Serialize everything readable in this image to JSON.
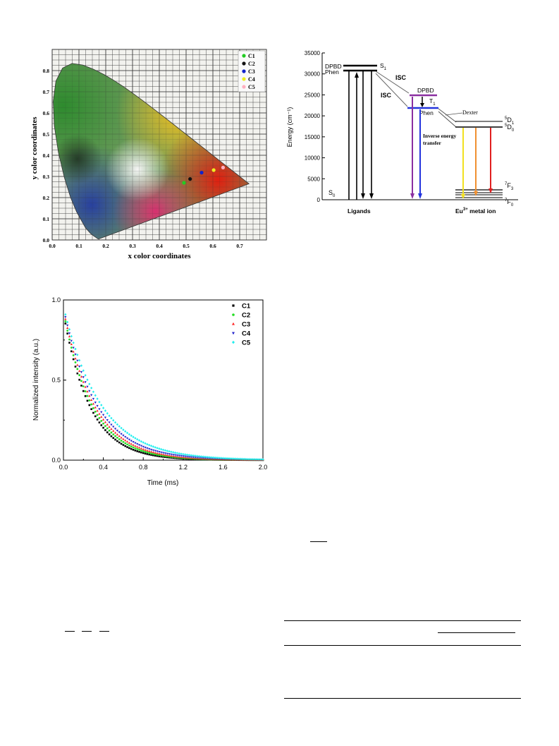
{
  "cie_chart": {
    "xlabel": "x color coordinates",
    "ylabel": "y color coordinates",
    "x_ticks": [
      "0.0",
      "0.1",
      "0.2",
      "0.3",
      "0.4",
      "0.5",
      "0.6",
      "0.7"
    ],
    "y_ticks": [
      "0.0",
      "0.1",
      "0.2",
      "0.3",
      "0.4",
      "0.5",
      "0.6",
      "0.7",
      "0.8"
    ],
    "points": [
      {
        "name": "C1",
        "color": "#22cc22",
        "x": 0.492,
        "y": 0.27
      },
      {
        "name": "C2",
        "color": "#111111",
        "x": 0.515,
        "y": 0.288
      },
      {
        "name": "C3",
        "color": "#1122cc",
        "x": 0.558,
        "y": 0.318
      },
      {
        "name": "C4",
        "color": "#eeee22",
        "x": 0.603,
        "y": 0.33
      },
      {
        "name": "C5",
        "color": "#ffb0c0",
        "x": 0.638,
        "y": 0.342
      }
    ]
  },
  "energy_diagram": {
    "ylabel": "Energy (cm⁻¹)",
    "y_ticks": [
      "0",
      "5000",
      "10000",
      "15000",
      "20000",
      "25000",
      "30000",
      "35000"
    ],
    "labels": {
      "dpbd_s": "DPBD",
      "phen_s": "Phen",
      "s1": "S",
      "s1_sub": "1",
      "isc1": "ISC",
      "isc2": "ISC",
      "dpbd_t": "DPBD",
      "t1": "T",
      "t1_sub": "1",
      "phen_t": "Phen",
      "dexter": "Dexter",
      "inverse1": "Inverse energy",
      "inverse2": "transfer",
      "s0": "S",
      "s0_sub": "0",
      "ligands": "Ligands",
      "eu_base": "Eu",
      "eu_sup": "3+",
      "eu_tail": " metal ion",
      "d1_sup": "5",
      "d1_main": "D",
      "d1_sub": "1",
      "d0_sup": "5",
      "d0_main": "D",
      "d0_sub": "0",
      "f3_sup": "7",
      "f3_main": "F",
      "f3_sub": "3",
      "f0_sup": "7",
      "f0_main": "F",
      "f0_sub": "0"
    }
  },
  "chart_data": [
    {
      "type": "scatter",
      "title": "",
      "xlabel": "x color coordinates",
      "ylabel": "y color coordinates",
      "xlim": [
        0,
        0.8
      ],
      "ylim": [
        0,
        0.9
      ],
      "series": [
        {
          "name": "C1",
          "x": [
            0.492
          ],
          "y": [
            0.27
          ]
        },
        {
          "name": "C2",
          "x": [
            0.515
          ],
          "y": [
            0.288
          ]
        },
        {
          "name": "C3",
          "x": [
            0.558
          ],
          "y": [
            0.318
          ]
        },
        {
          "name": "C4",
          "x": [
            0.603
          ],
          "y": [
            0.33
          ]
        },
        {
          "name": "C5",
          "x": [
            0.638
          ],
          "y": [
            0.342
          ]
        }
      ]
    },
    {
      "type": "scatter",
      "title": "",
      "xlabel": "Time (ms)",
      "ylabel": "Normalized intensity (a.u.)",
      "xlim": [
        0,
        2.0
      ],
      "ylim": [
        0,
        1.0
      ],
      "x_ticks": [
        "0.0",
        "0.4",
        "0.8",
        "1.2",
        "1.6",
        "2.0"
      ],
      "y_ticks": [
        "0.0",
        "0.5",
        "1.0"
      ],
      "legend": "top-right",
      "series": [
        {
          "name": "C1",
          "color": "#000000",
          "tau": 0.264,
          "a": 0.92
        },
        {
          "name": "C2",
          "color": "#22dd22",
          "tau": 0.285,
          "a": 0.93
        },
        {
          "name": "C3",
          "color": "#ff2222",
          "tau": 0.305,
          "a": 0.94
        },
        {
          "name": "C4",
          "color": "#2222cc",
          "tau": 0.33,
          "a": 0.95
        },
        {
          "name": "C5",
          "color": "#22eeee",
          "tau": 0.37,
          "a": 0.96
        }
      ]
    }
  ]
}
